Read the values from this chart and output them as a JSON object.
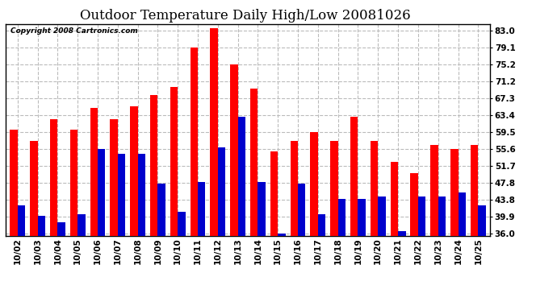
{
  "title": "Outdoor Temperature Daily High/Low 20081026",
  "copyright": "Copyright 2008 Cartronics.com",
  "categories": [
    "10/02",
    "10/03",
    "10/04",
    "10/05",
    "10/06",
    "10/07",
    "10/08",
    "10/09",
    "10/10",
    "10/11",
    "10/12",
    "10/13",
    "10/14",
    "10/15",
    "10/16",
    "10/17",
    "10/18",
    "10/19",
    "10/20",
    "10/21",
    "10/22",
    "10/23",
    "10/24",
    "10/25"
  ],
  "highs": [
    60.0,
    57.5,
    62.5,
    60.0,
    65.0,
    62.5,
    65.5,
    68.0,
    70.0,
    79.0,
    83.5,
    75.2,
    69.5,
    55.0,
    57.5,
    59.5,
    57.5,
    63.0,
    57.5,
    52.5,
    50.0,
    56.5,
    55.5,
    56.5
  ],
  "lows": [
    42.5,
    40.0,
    38.5,
    40.5,
    55.5,
    54.5,
    54.5,
    47.5,
    41.0,
    48.0,
    56.0,
    63.0,
    48.0,
    36.0,
    47.5,
    40.5,
    44.0,
    44.0,
    44.5,
    36.5,
    44.5,
    44.5,
    45.5,
    42.5
  ],
  "high_color": "#ff0000",
  "low_color": "#0000cc",
  "bg_color": "#ffffff",
  "grid_color": "#bbbbbb",
  "yticks": [
    36.0,
    39.9,
    43.8,
    47.8,
    51.7,
    55.6,
    59.5,
    63.4,
    67.3,
    71.2,
    75.2,
    79.1,
    83.0
  ],
  "ymin": 35.5,
  "ymax": 84.5,
  "title_fontsize": 12,
  "tick_fontsize": 7.5,
  "copyright_fontsize": 6.5,
  "bar_width": 0.38
}
